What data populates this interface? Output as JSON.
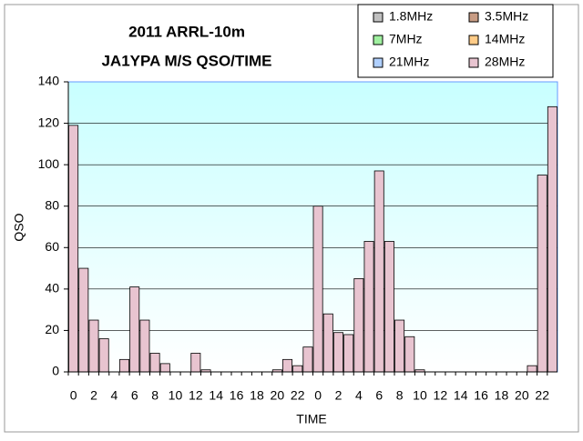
{
  "chart_data": {
    "type": "stacked_bar",
    "title": "2011 ARRL-10m",
    "subtitle": "JA1YPA M/S  QSO/TIME",
    "x_label": "TIME",
    "y_label": "QSO",
    "categories": [
      "0",
      null,
      "2",
      null,
      "4",
      null,
      "6",
      null,
      "8",
      null,
      "10",
      null,
      "12",
      null,
      "14",
      null,
      "16",
      null,
      "18",
      null,
      "20",
      null,
      "22",
      null,
      "0",
      null,
      "2",
      null,
      "4",
      null,
      "6",
      null,
      "8",
      null,
      "10",
      null,
      "12",
      null,
      "14",
      null,
      "16",
      null,
      "18",
      null,
      "20",
      null,
      "22",
      null
    ],
    "series": [
      {
        "name": "1.8MHz",
        "color": "#c0c0c0",
        "values": [
          0,
          0,
          0,
          0,
          0,
          0,
          0,
          0,
          0,
          0,
          0,
          0,
          0,
          0,
          0,
          0,
          0,
          0,
          0,
          0,
          0,
          0,
          0,
          0,
          0,
          0,
          0,
          0,
          0,
          0,
          0,
          0,
          0,
          0,
          0,
          0,
          0,
          0,
          0,
          0,
          0,
          0,
          0,
          0,
          0,
          0,
          0,
          0
        ]
      },
      {
        "name": "3.5MHz",
        "color": "#c89c84",
        "values": [
          0,
          0,
          0,
          0,
          0,
          0,
          0,
          0,
          0,
          0,
          0,
          0,
          0,
          0,
          0,
          0,
          0,
          0,
          0,
          0,
          0,
          0,
          0,
          0,
          0,
          0,
          0,
          0,
          0,
          0,
          0,
          0,
          0,
          0,
          0,
          0,
          0,
          0,
          0,
          0,
          0,
          0,
          0,
          0,
          0,
          0,
          0,
          0
        ]
      },
      {
        "name": "7MHz",
        "color": "#a0f0a0",
        "values": [
          0,
          0,
          0,
          0,
          0,
          0,
          0,
          0,
          0,
          0,
          0,
          0,
          0,
          0,
          0,
          0,
          0,
          0,
          0,
          0,
          0,
          0,
          0,
          0,
          0,
          0,
          0,
          0,
          0,
          0,
          0,
          0,
          0,
          0,
          0,
          0,
          0,
          0,
          0,
          0,
          0,
          0,
          0,
          0,
          0,
          0,
          0,
          0
        ]
      },
      {
        "name": "14MHz",
        "color": "#ffcc88",
        "values": [
          0,
          0,
          0,
          0,
          0,
          0,
          0,
          0,
          0,
          0,
          0,
          0,
          0,
          0,
          0,
          0,
          0,
          0,
          0,
          0,
          0,
          0,
          0,
          0,
          0,
          0,
          0,
          0,
          0,
          0,
          0,
          0,
          0,
          0,
          0,
          0,
          0,
          0,
          0,
          0,
          0,
          0,
          0,
          0,
          0,
          0,
          0,
          0
        ]
      },
      {
        "name": "21MHz",
        "color": "#b0d0ff",
        "values": [
          0,
          0,
          0,
          0,
          0,
          0,
          0,
          0,
          0,
          0,
          0,
          0,
          0,
          0,
          0,
          0,
          0,
          0,
          0,
          0,
          0,
          0,
          0,
          0,
          0,
          0,
          0,
          0,
          0,
          0,
          0,
          0,
          0,
          0,
          0,
          0,
          0,
          0,
          0,
          0,
          0,
          0,
          0,
          0,
          0,
          0,
          0,
          0
        ]
      },
      {
        "name": "28MHz",
        "color": "#e8c4d0",
        "values": [
          119,
          50,
          25,
          16,
          0,
          6,
          41,
          25,
          9,
          4,
          0,
          0,
          9,
          1,
          0,
          0,
          0,
          0,
          0,
          0,
          1,
          6,
          3,
          12,
          80,
          28,
          19,
          18,
          45,
          63,
          97,
          63,
          25,
          17,
          1,
          0,
          0,
          0,
          0,
          0,
          0,
          0,
          0,
          0,
          0,
          3,
          95,
          128
        ]
      }
    ],
    "ylim": [
      0,
      140
    ],
    "yticks": [
      0,
      20,
      40,
      60,
      80,
      100,
      120,
      140
    ],
    "grid": true
  }
}
